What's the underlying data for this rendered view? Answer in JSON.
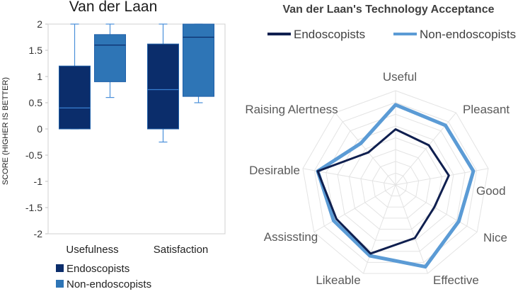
{
  "chart_data": [
    {
      "type": "box",
      "title": "Van der Laan",
      "ylabel": "SCORE (HIGHER IS BETTER)",
      "ylim": [
        -2,
        2
      ],
      "yticks": [
        "2",
        "1.5",
        "1",
        "0.5",
        "0",
        "-0.5",
        "-1",
        "-1.5",
        "-2"
      ],
      "categories": [
        "Usefulness",
        "Satisfaction"
      ],
      "series": [
        {
          "name": "Endoscopists",
          "color": "#0b2d6b",
          "boxes": [
            {
              "min": 0,
              "q1": 0,
              "median": 0.4,
              "q3": 1.2,
              "max": 2
            },
            {
              "min": -0.25,
              "q1": 0,
              "median": 0.75,
              "q3": 1.62,
              "max": 2
            }
          ]
        },
        {
          "name": "Non-endoscopists",
          "color": "#2e75b6",
          "boxes": [
            {
              "min": 0.6,
              "q1": 0.9,
              "median": 1.6,
              "q3": 1.8,
              "max": 2
            },
            {
              "min": 0.5,
              "q1": 0.62,
              "median": 1.75,
              "q3": 2,
              "max": 2
            }
          ]
        }
      ],
      "legend": "bottom-left",
      "grid": false
    },
    {
      "type": "radar",
      "title": "Van der Laan's Technology Acceptance",
      "axes": [
        "Useful",
        "Pleasant",
        "Good",
        "Nice",
        "Effective",
        "Likeable",
        "Assissting",
        "Desirable",
        "Raising Alertness"
      ],
      "rmax": 2,
      "grid_rings": 8,
      "series": [
        {
          "name": "Endoscopists",
          "color": "#0f1f4f",
          "values": [
            1.18,
            1.1,
            1.15,
            0.95,
            1.2,
            1.55,
            1.45,
            1.68,
            0.9
          ]
        },
        {
          "name": "Non-endoscopists",
          "color": "#5b9bd5",
          "values": [
            1.7,
            1.65,
            1.68,
            1.55,
            1.85,
            1.6,
            1.52,
            1.68,
            1.15
          ]
        }
      ],
      "legend": "top"
    }
  ]
}
